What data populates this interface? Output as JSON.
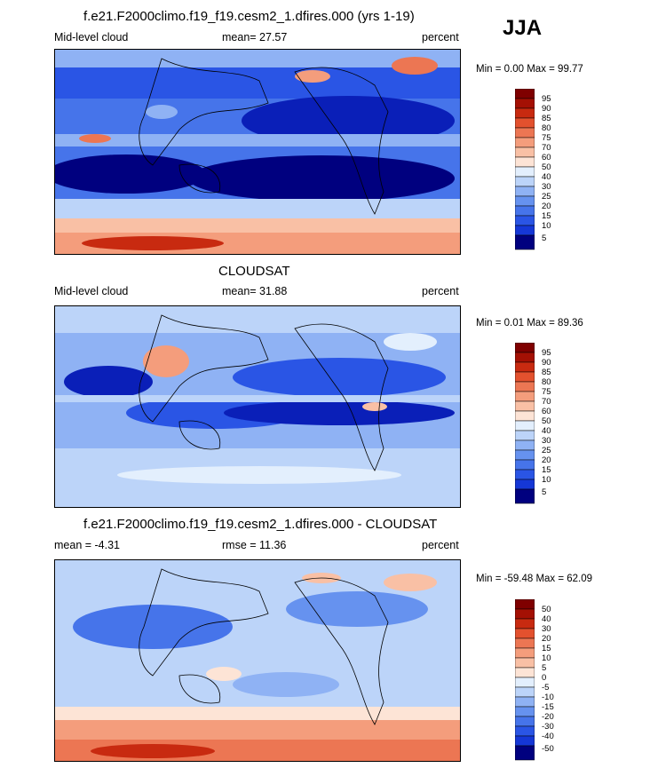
{
  "season": "JJA",
  "panels": [
    {
      "id": "model",
      "title": "f.e21.F2000climo.f19_f19.cesm2_1.dfires.000 (yrs 1-19)",
      "left_label": "Mid-level cloud",
      "center_label": "mean=  27.57",
      "right_label": "percent",
      "minmax": "Min =   0.00 Max =  99.77",
      "colorbar_labels": [
        "95",
        "90",
        "85",
        "80",
        "75",
        "70",
        "60",
        "50",
        "40",
        "30",
        "25",
        "20",
        "15",
        "10",
        "5"
      ]
    },
    {
      "id": "obs",
      "title": "CLOUDSAT",
      "left_label": "Mid-level cloud",
      "center_label": "mean=  31.88",
      "right_label": "percent",
      "minmax": "Min =   0.01 Max =  89.36",
      "colorbar_labels": [
        "95",
        "90",
        "85",
        "80",
        "75",
        "70",
        "60",
        "50",
        "40",
        "30",
        "25",
        "20",
        "15",
        "10",
        "5"
      ]
    },
    {
      "id": "diff",
      "title": "f.e21.F2000climo.f19_f19.cesm2_1.dfires.000 - CLOUDSAT",
      "left_label": "mean =  -4.31",
      "center_label": "rmse =  11.36",
      "right_label": "percent",
      "minmax": "Min = -59.48 Max =  62.09",
      "colorbar_labels": [
        "50",
        "40",
        "30",
        "20",
        "15",
        "10",
        "5",
        "0",
        "-5",
        "-10",
        "-15",
        "-20",
        "-30",
        "-40",
        "-50"
      ]
    }
  ],
  "colors": {
    "scale": [
      "#00007f",
      "#0a1fb8",
      "#1537d6",
      "#2a55e5",
      "#4674ea",
      "#6692ef",
      "#8fb2f4",
      "#bcd4f9",
      "#e3effd",
      "#fde4d6",
      "#f9c0a5",
      "#f49d7c",
      "#ec7653",
      "#e3512e",
      "#c82a10",
      "#a41004",
      "#7f0000"
    ]
  },
  "chart_data": [
    {
      "type": "heatmap",
      "title": "f.e21.F2000climo.f19_f19.cesm2_1.dfires.000 (yrs 1-19)",
      "variable": "Mid-level cloud",
      "units": "percent",
      "mean": 27.57,
      "min": 0.0,
      "max": 99.77,
      "contour_levels": [
        5,
        10,
        15,
        20,
        25,
        30,
        40,
        50,
        60,
        70,
        75,
        80,
        85,
        90,
        95
      ]
    },
    {
      "type": "heatmap",
      "title": "CLOUDSAT",
      "variable": "Mid-level cloud",
      "units": "percent",
      "mean": 31.88,
      "min": 0.01,
      "max": 89.36,
      "contour_levels": [
        5,
        10,
        15,
        20,
        25,
        30,
        40,
        50,
        60,
        70,
        75,
        80,
        85,
        90,
        95
      ]
    },
    {
      "type": "heatmap",
      "title": "f.e21.F2000climo.f19_f19.cesm2_1.dfires.000 - CLOUDSAT",
      "units": "percent",
      "mean": -4.31,
      "rmse": 11.36,
      "min": -59.48,
      "max": 62.09,
      "contour_levels": [
        -50,
        -40,
        -30,
        -20,
        -15,
        -10,
        -5,
        0,
        5,
        10,
        15,
        20,
        30,
        40,
        50
      ]
    }
  ]
}
